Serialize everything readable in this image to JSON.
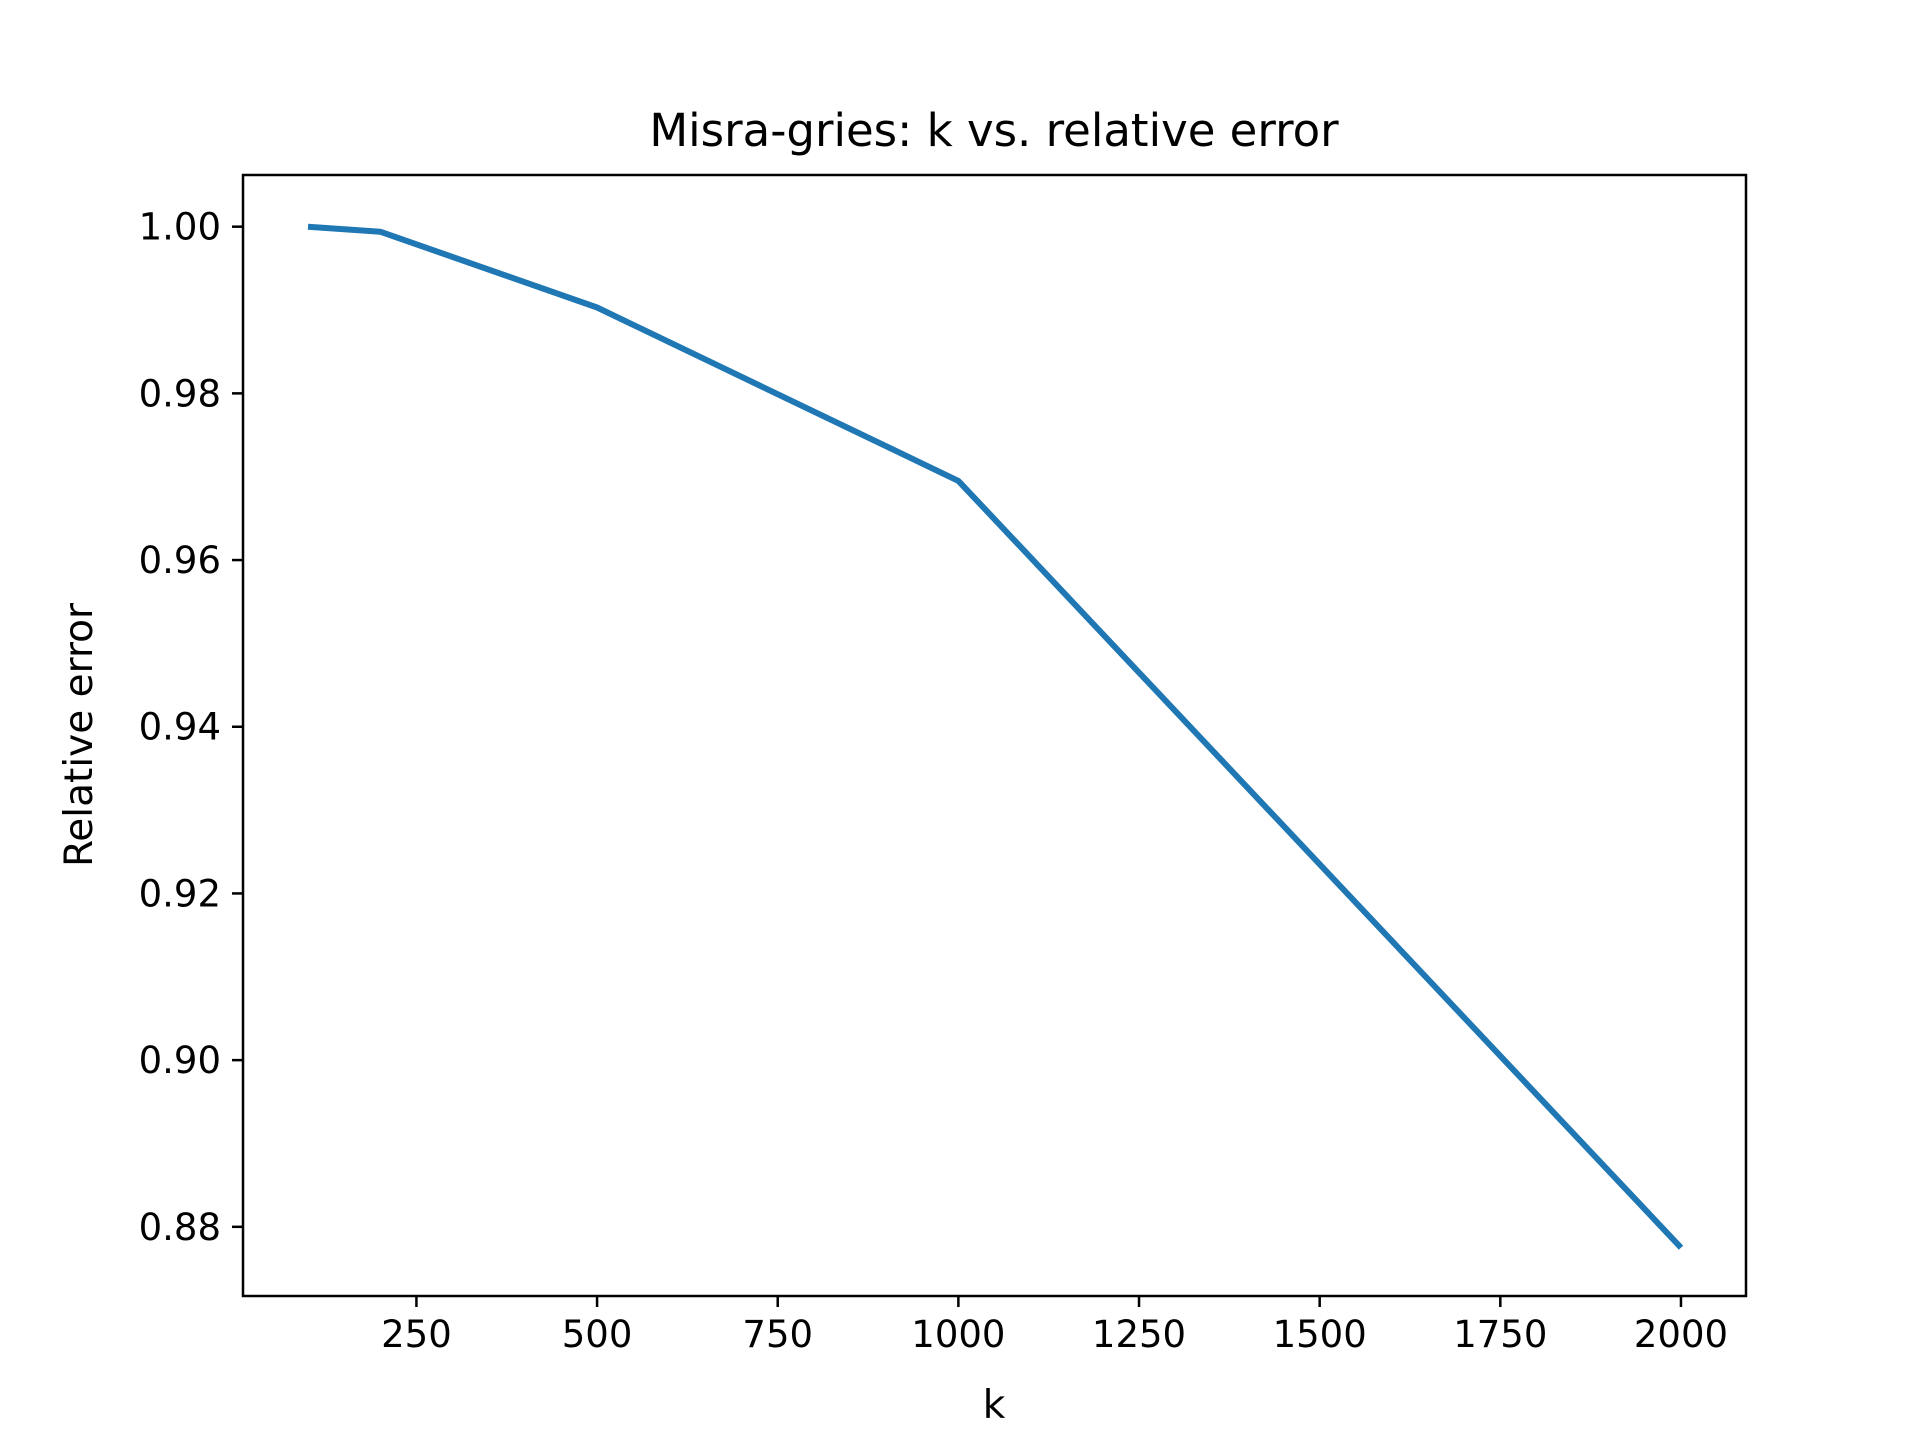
{
  "chart_data": {
    "type": "line",
    "title": "Misra-gries: k vs. relative error",
    "xlabel": "k",
    "ylabel": "Relative error",
    "xlim": [
      10,
      2090
    ],
    "ylim": [
      0.8717,
      1.0062
    ],
    "xticks": [
      250,
      500,
      750,
      1000,
      1250,
      1500,
      1750,
      2000
    ],
    "xtick_labels": [
      "250",
      "500",
      "750",
      "1000",
      "1250",
      "1500",
      "1750",
      "2000"
    ],
    "yticks": [
      0.88,
      0.9,
      0.92,
      0.94,
      0.96,
      0.98,
      1.0
    ],
    "ytick_labels": [
      "0.88",
      "0.90",
      "0.92",
      "0.94",
      "0.96",
      "0.98",
      "1.00"
    ],
    "grid": false,
    "legend": "none",
    "series": [
      {
        "color": "#1f77b4",
        "x": [
          100,
          200,
          500,
          1000,
          2000
        ],
        "y": [
          1.0,
          0.9994,
          0.9903,
          0.9695,
          0.8775
        ]
      }
    ]
  }
}
